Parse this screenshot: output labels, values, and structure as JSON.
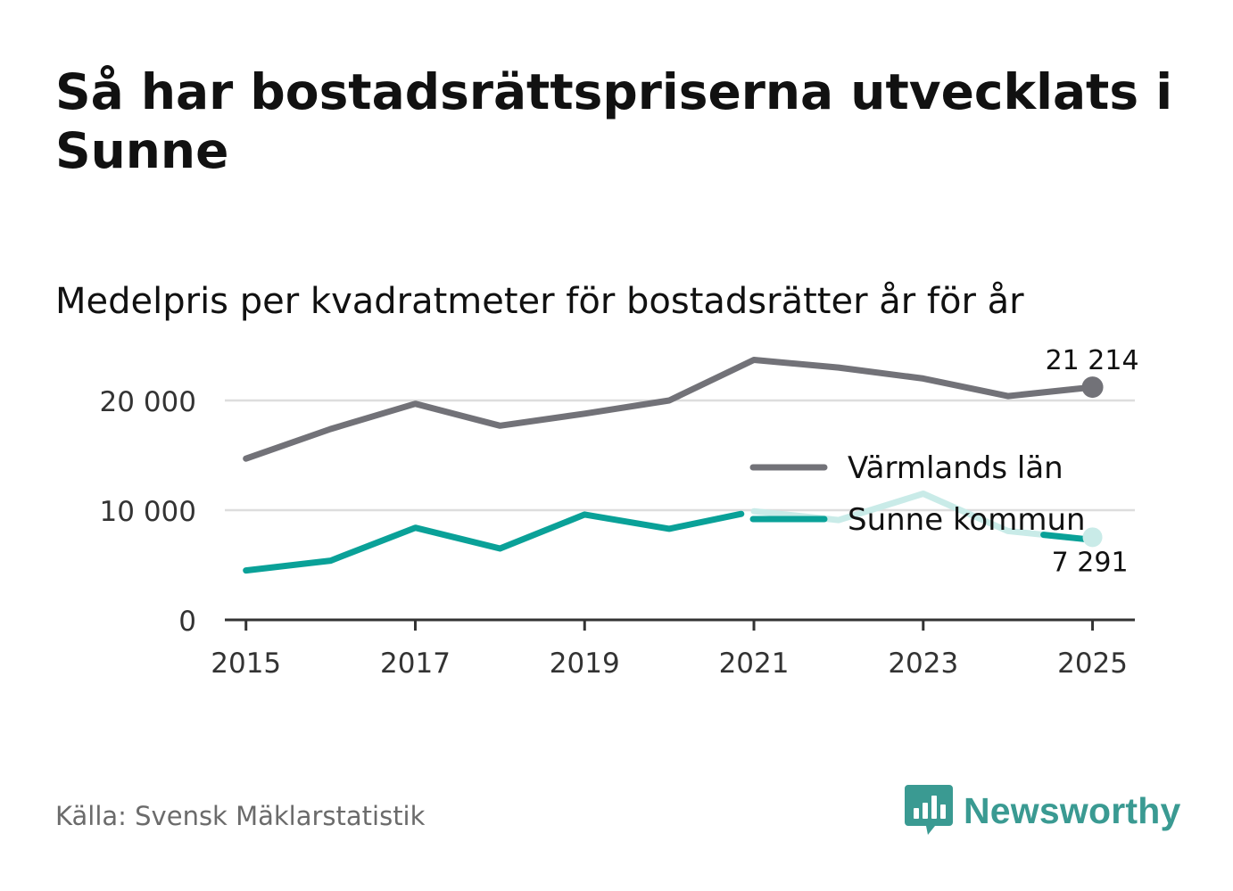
{
  "title": "Så har bostadsrättspriserna utvecklats i Sunne",
  "subtitle": "Medelpris per kvadratmeter för bostadsrätter år för år",
  "source": "Källa: Svensk Mäklarstatistik",
  "brand": "Newsworthy",
  "colors": {
    "lan": "#727278",
    "kommun": "#0aa198",
    "kommun_faded": "#c9ebe8",
    "grid": "#dddddd",
    "axis": "#333333",
    "brand": "#3a9a92"
  },
  "chart_data": {
    "type": "line",
    "title": "Medelpris per kvadratmeter för bostadsrätter år för år",
    "xlabel": "",
    "ylabel": "",
    "ylim": [
      0,
      25000
    ],
    "xlim": [
      2014.75,
      2025.5
    ],
    "y_ticks": [
      0,
      10000,
      20000
    ],
    "y_tick_labels": [
      "0",
      "10 000",
      "20 000"
    ],
    "x_ticks": [
      2015,
      2017,
      2019,
      2021,
      2023,
      2025
    ],
    "x_tick_labels": [
      "2015",
      "2017",
      "2019",
      "2021",
      "2023",
      "2025"
    ],
    "x": [
      2015,
      2016,
      2017,
      2018,
      2019,
      2020,
      2021,
      2022,
      2023,
      2024,
      2025
    ],
    "legend_position": "right",
    "series": [
      {
        "name": "Värmlands län",
        "key": "lan",
        "values": [
          14700,
          17400,
          19700,
          17700,
          18800,
          20000,
          23700,
          23000,
          22000,
          20400,
          21214
        ],
        "end_label": "21 214"
      },
      {
        "name": "Sunne kommun",
        "key": "kommun",
        "values": [
          4500,
          5400,
          8400,
          6500,
          9600,
          8300,
          9900,
          9100,
          11500,
          8100,
          7291
        ],
        "end_label": "7 291",
        "faded_from": 2021
      }
    ]
  }
}
